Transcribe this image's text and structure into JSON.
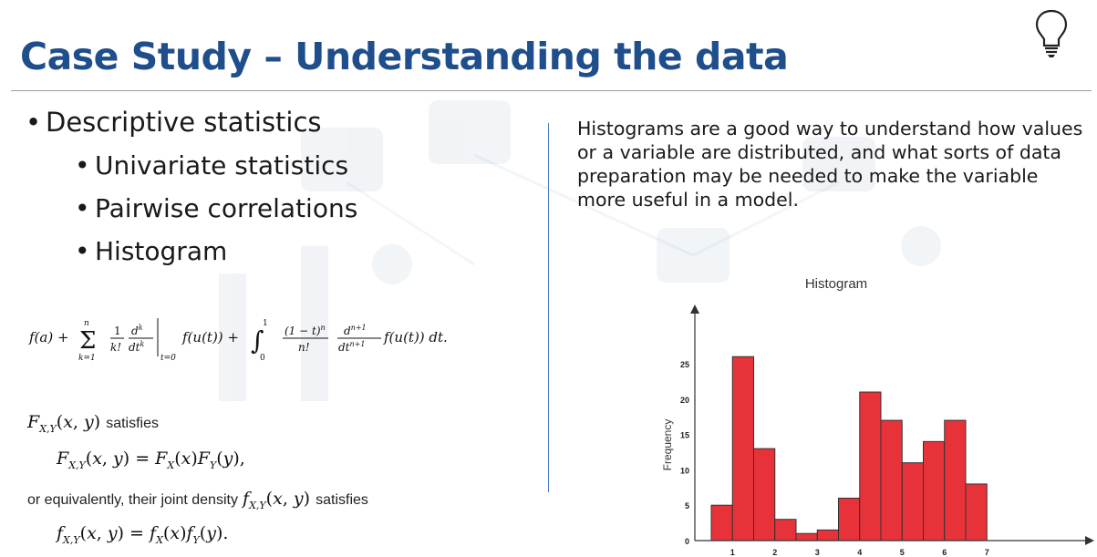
{
  "slide": {
    "title": "Case Study – Understanding the data",
    "bullets": [
      {
        "level": 1,
        "text": "Descriptive statistics"
      },
      {
        "level": 2,
        "text": "Univariate statistics"
      },
      {
        "level": 2,
        "text": "Pairwise correlations"
      },
      {
        "level": 2,
        "text": "Histogram"
      }
    ],
    "description": "Histograms are a good way to understand how values or a variable are distributed, and what sorts of data preparation may be needed to make the variable more useful in a model.",
    "formulas": {
      "taylor": "f(a) + Σ_{k=1}^{n} (1/k!) d^k/dt^k |_{t=0} f(u(t)) + ∫_0^1 ((1−t)^n / n!) d^{n+1}/dt^{n+1} f(u(t)) dt.",
      "satisfies_label": "satisfies",
      "equivalently_text": "or equivalently, their joint density",
      "satisfies_label_2": "satisfies"
    },
    "icons": {
      "top_right": "lightbulb-icon"
    },
    "colors": {
      "title": "#1f4e8c",
      "bars": "#e8323a",
      "divider": "#4a7fc1"
    }
  },
  "chart_data": {
    "type": "bar",
    "title": "Histogram",
    "ylabel": "Frequency",
    "xlabel": "",
    "x_ticks": [
      "1",
      "2",
      "3",
      "4",
      "5",
      "6",
      "7"
    ],
    "y_ticks": [
      "0",
      "5",
      "10",
      "15",
      "20",
      "25"
    ],
    "ylim": [
      0,
      30
    ],
    "xlim": [
      0.5,
      7
    ],
    "bin_width": 0.5,
    "bins": [
      {
        "start": 0.5,
        "value": 5
      },
      {
        "start": 1.0,
        "value": 26
      },
      {
        "start": 1.5,
        "value": 13
      },
      {
        "start": 2.0,
        "value": 3
      },
      {
        "start": 2.5,
        "value": 1
      },
      {
        "start": 3.0,
        "value": 1.5
      },
      {
        "start": 3.5,
        "value": 6
      },
      {
        "start": 4.0,
        "value": 21
      },
      {
        "start": 4.5,
        "value": 17
      },
      {
        "start": 5.0,
        "value": 11
      },
      {
        "start": 5.5,
        "value": 14
      },
      {
        "start": 6.0,
        "value": 17
      },
      {
        "start": 6.5,
        "value": 8
      }
    ]
  }
}
